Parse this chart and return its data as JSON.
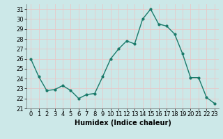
{
  "x": [
    0,
    1,
    2,
    3,
    4,
    5,
    6,
    7,
    8,
    9,
    10,
    11,
    12,
    13,
    14,
    15,
    16,
    17,
    18,
    19,
    20,
    21,
    22,
    23
  ],
  "y": [
    26.0,
    24.2,
    22.8,
    22.9,
    23.3,
    22.8,
    22.0,
    22.4,
    22.5,
    24.2,
    26.0,
    27.0,
    27.8,
    27.5,
    30.0,
    31.0,
    29.5,
    29.3,
    28.5,
    26.5,
    24.1,
    24.1,
    22.1,
    21.5
  ],
  "line_color": "#1a7a6a",
  "marker": "o",
  "marker_size": 2.0,
  "linewidth": 1.0,
  "bg_color": "#cce8e8",
  "grid_color": "#e8c8c8",
  "xlabel": "Humidex (Indice chaleur)",
  "xlim": [
    -0.5,
    23.5
  ],
  "ylim": [
    21,
    31.5
  ],
  "yticks": [
    21,
    22,
    23,
    24,
    25,
    26,
    27,
    28,
    29,
    30,
    31
  ],
  "xticks": [
    0,
    1,
    2,
    3,
    4,
    5,
    6,
    7,
    8,
    9,
    10,
    11,
    12,
    13,
    14,
    15,
    16,
    17,
    18,
    19,
    20,
    21,
    22,
    23
  ],
  "label_fontsize": 7,
  "tick_fontsize": 6
}
